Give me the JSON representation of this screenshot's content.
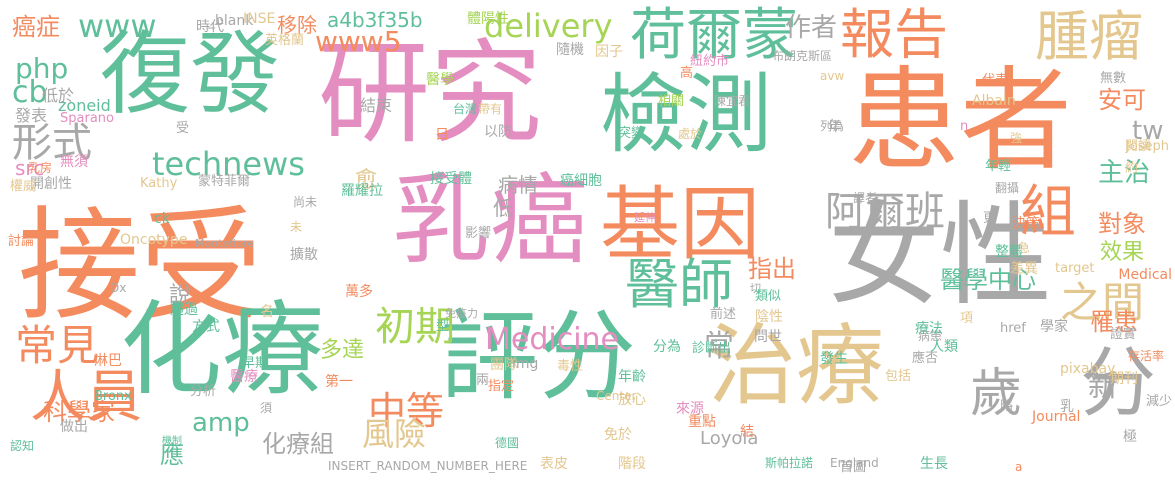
{
  "colors": {
    "orange": "#f38b5f",
    "teal": "#5fbf9a",
    "pink": "#e48dc0",
    "green": "#a6d455",
    "tan": "#e3c78f",
    "gray": "#a8a8a8",
    "yellow": "#f2d447"
  },
  "words": [
    {
      "text": "接受"
    },
    {
      "text": "研究"
    },
    {
      "text": "患者"
    },
    {
      "text": "乳癌"
    },
    {
      "text": "女性"
    },
    {
      "text": "評分"
    },
    {
      "text": "化療"
    },
    {
      "text": "治療"
    },
    {
      "text": "復發"
    },
    {
      "text": "檢測"
    },
    {
      "text": "基因"
    },
    {
      "text": "分"
    },
    {
      "text": "荷爾蒙"
    },
    {
      "text": "報告"
    },
    {
      "text": "腫瘤"
    },
    {
      "text": "醫師"
    },
    {
      "text": "人員"
    },
    {
      "text": "歲"
    },
    {
      "text": "阿爾班"
    },
    {
      "text": "組"
    },
    {
      "text": "之間"
    },
    {
      "text": "常見"
    },
    {
      "text": "初期"
    },
    {
      "text": "中等"
    },
    {
      "text": "www5"
    },
    {
      "text": "www"
    },
    {
      "text": "delivery"
    },
    {
      "text": "technews"
    },
    {
      "text": "Medicine"
    },
    {
      "text": "形式"
    },
    {
      "text": "作者"
    },
    {
      "text": "tw"
    },
    {
      "text": "安可"
    },
    {
      "text": "主治"
    },
    {
      "text": "對象"
    },
    {
      "text": "效果"
    },
    {
      "text": "指出"
    },
    {
      "text": "醫學中心"
    },
    {
      "text": "罹患"
    },
    {
      "text": "新"
    },
    {
      "text": "風險"
    },
    {
      "text": "amp"
    },
    {
      "text": "化療組"
    },
    {
      "text": "科學家"
    },
    {
      "text": "病情"
    },
    {
      "text": "低"
    },
    {
      "text": "常"
    },
    {
      "text": "php"
    },
    {
      "text": "cb"
    },
    {
      "text": "癌症"
    },
    {
      "text": "說"
    },
    {
      "text": "應"
    },
    {
      "text": "多達"
    },
    {
      "text": "愈"
    },
    {
      "text": "移除"
    },
    {
      "text": "a4b3f35b"
    },
    {
      "text": "_blank"
    },
    {
      "text": "INSE"
    },
    {
      "text": "英格蘭"
    },
    {
      "text": "時代"
    },
    {
      "text": "結束"
    },
    {
      "text": "zoneid"
    },
    {
      "text": "Sparano"
    },
    {
      "text": "發表"
    },
    {
      "text": "低於"
    },
    {
      "text": "無須"
    },
    {
      "text": "src"
    },
    {
      "text": "開創性"
    },
    {
      "text": "權威"
    },
    {
      "text": "乳房"
    },
    {
      "text": "Kathy"
    },
    {
      "text": "蒙特菲爾"
    },
    {
      "text": "ck"
    },
    {
      "text": "Oncotype"
    },
    {
      "text": "Montefiore"
    },
    {
      "text": "討論"
    },
    {
      "text": "Dx"
    },
    {
      "text": "超過"
    },
    {
      "text": "方式"
    },
    {
      "text": "名"
    },
    {
      "text": "萬多"
    },
    {
      "text": "擴散"
    },
    {
      "text": "早期"
    },
    {
      "text": "醫療"
    },
    {
      "text": "第一"
    },
    {
      "text": "團隊"
    },
    {
      "text": "淋巴"
    },
    {
      "text": "Bronx"
    },
    {
      "text": "分析"
    },
    {
      "text": "做出"
    },
    {
      "text": "認知"
    },
    {
      "text": "機制"
    },
    {
      "text": "須"
    },
    {
      "text": "免於"
    },
    {
      "text": "德國"
    },
    {
      "text": "表皮"
    },
    {
      "text": "階段"
    },
    {
      "text": "INSERT_RANDOM_NUMBER_HERE"
    },
    {
      "text": "img"
    },
    {
      "text": "毒性"
    },
    {
      "text": "Center"
    },
    {
      "text": "年齡"
    },
    {
      "text": "放心"
    },
    {
      "text": "來源"
    },
    {
      "text": "Loyola"
    },
    {
      "text": "分為"
    },
    {
      "text": "診斷出"
    },
    {
      "text": "前述"
    },
    {
      "text": "免疫力"
    },
    {
      "text": "型"
    },
    {
      "text": "兩"
    },
    {
      "text": "指定"
    },
    {
      "text": "影響"
    },
    {
      "text": "未"
    },
    {
      "text": "尚未"
    },
    {
      "text": "羅耀拉"
    },
    {
      "text": "接受體"
    },
    {
      "text": "癌細胞"
    },
    {
      "text": "延伸"
    },
    {
      "text": "以防"
    },
    {
      "text": "日"
    },
    {
      "text": "台灣"
    },
    {
      "text": "帶有"
    },
    {
      "text": "醫學"
    },
    {
      "text": "體陽性"
    },
    {
      "text": "隨機"
    },
    {
      "text": "因子"
    },
    {
      "text": "紐約市"
    },
    {
      "text": "高"
    },
    {
      "text": "相關"
    },
    {
      "text": "突變"
    },
    {
      "text": "處於"
    },
    {
      "text": "陳宜君"
    },
    {
      "text": "布朗克斯區"
    },
    {
      "text": "avw"
    },
    {
      "text": "Albain"
    },
    {
      "text": "代表"
    },
    {
      "text": "無數"
    },
    {
      "text": "閱讀"
    },
    {
      "text": "列為"
    },
    {
      "text": "n"
    },
    {
      "text": "年"
    },
    {
      "text": "受"
    },
    {
      "text": "強"
    },
    {
      "text": "年輕"
    },
    {
      "text": "Joseph"
    },
    {
      "text": "約"
    },
    {
      "text": "翻攝"
    },
    {
      "text": "決策"
    },
    {
      "text": "整體"
    },
    {
      "text": "譯者"
    },
    {
      "text": "急"
    },
    {
      "text": "差異"
    },
    {
      "text": "更"
    },
    {
      "text": "target"
    },
    {
      "text": "Medical"
    },
    {
      "text": "切"
    },
    {
      "text": "類似"
    },
    {
      "text": "陰性"
    },
    {
      "text": "病患"
    },
    {
      "text": "項"
    },
    {
      "text": "href"
    },
    {
      "text": "療法"
    },
    {
      "text": "學家"
    },
    {
      "text": "人類"
    },
    {
      "text": "應否"
    },
    {
      "text": "證實"
    },
    {
      "text": "存活率"
    },
    {
      "text": "pixabay"
    },
    {
      "text": "發生"
    },
    {
      "text": "包括"
    },
    {
      "text": "問世"
    },
    {
      "text": "期刊"
    },
    {
      "text": "乳"
    },
    {
      "text": "略"
    },
    {
      "text": "減少"
    },
    {
      "text": "重點"
    },
    {
      "text": "結"
    },
    {
      "text": "Journal"
    },
    {
      "text": "極"
    },
    {
      "text": "斯帕拉諾"
    },
    {
      "text": "England"
    },
    {
      "text": "首圖"
    },
    {
      "text": "生長"
    },
    {
      "text": "a"
    }
  ]
}
